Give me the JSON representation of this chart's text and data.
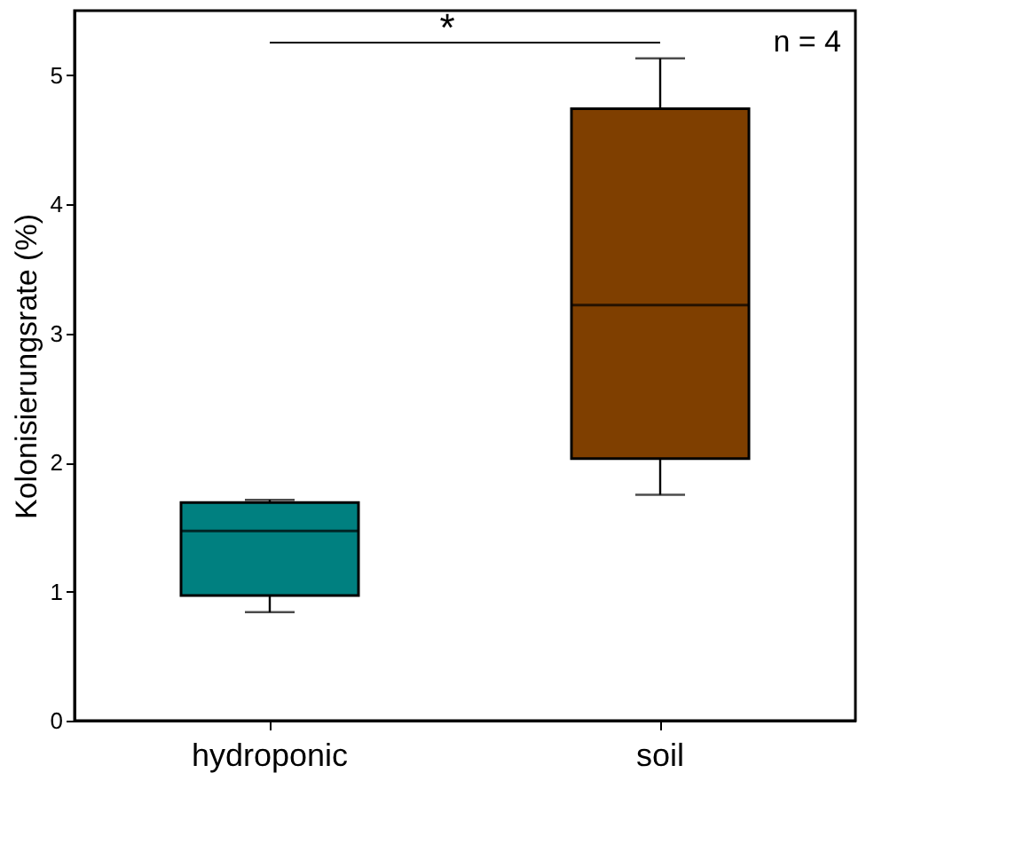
{
  "chart_data": {
    "type": "box",
    "ylabel": "Kolonisierungsrate (%)",
    "categories": [
      "hydroponic",
      "soil"
    ],
    "series": [
      {
        "colors": [
          "#008080",
          "#7f3f00"
        ],
        "boxes": [
          {
            "low": 0.84,
            "q1": 0.97,
            "median": 1.47,
            "q3": 1.69,
            "high": 1.71
          },
          {
            "low": 1.75,
            "q1": 2.03,
            "median": 3.22,
            "q3": 4.74,
            "high": 5.13
          }
        ]
      }
    ],
    "ylim": [
      0,
      5.5
    ],
    "yticks": [
      0,
      1,
      2,
      3,
      4,
      5
    ],
    "grid": false,
    "annotations": [
      "*",
      "n = 4"
    ]
  }
}
